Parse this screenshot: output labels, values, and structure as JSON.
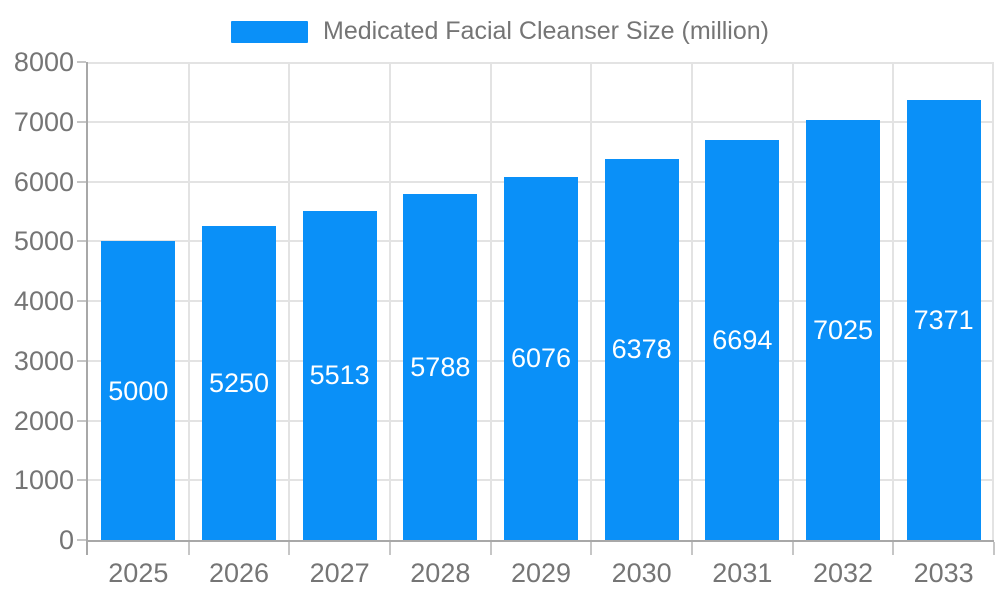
{
  "chart_data": {
    "type": "bar",
    "title": "Medicated Facial Cleanser Size (million)",
    "legend": {
      "entries": [
        "Medicated Facial Cleanser Size (million)"
      ],
      "position": "top-center"
    },
    "categories": [
      "2025",
      "2026",
      "2027",
      "2028",
      "2029",
      "2030",
      "2031",
      "2032",
      "2033"
    ],
    "series": [
      {
        "name": "Medicated Facial Cleanser Size (million)",
        "values": [
          5000,
          5250,
          5513,
          5788,
          6076,
          6378,
          6694,
          7025,
          7371
        ]
      }
    ],
    "bar_value_labels": [
      "5000",
      "5250",
      "5513",
      "5788",
      "6076",
      "6378",
      "6694",
      "7025",
      "7371"
    ],
    "xlabel": "",
    "ylabel": "",
    "ylim": [
      0,
      8000
    ],
    "ytick_step": 1000,
    "ytick_labels": [
      "0",
      "1000",
      "2000",
      "3000",
      "4000",
      "5000",
      "6000",
      "7000",
      "8000"
    ],
    "grid": true,
    "colors": {
      "bar": "#0a90f8",
      "gridline": "#e3e3e3",
      "axis": "#a8a8a8",
      "tick": "#c6c6c6",
      "axis_label": "#757575",
      "legend_label": "#757575",
      "bar_label": "#ffffff",
      "background": "#ffffff"
    }
  }
}
